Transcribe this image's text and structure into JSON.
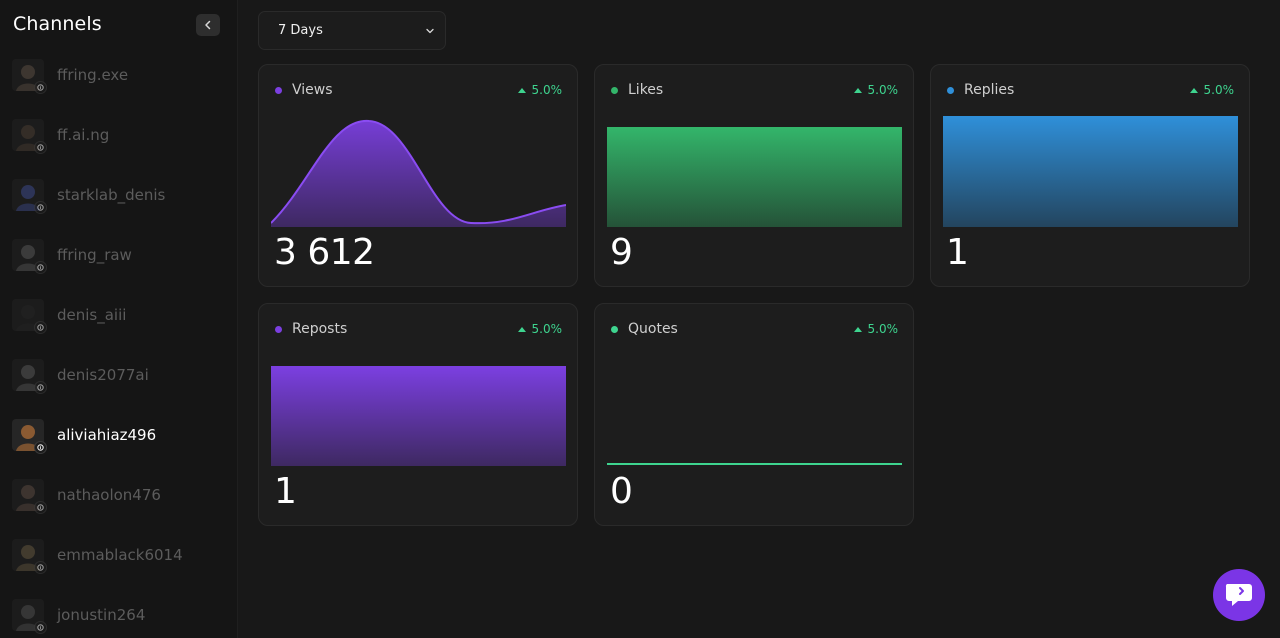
{
  "sidebar": {
    "title": "Channels",
    "channels": [
      {
        "name": "ffring.exe",
        "avatar_color": "#6e5f52"
      },
      {
        "name": "ff.ai.ng",
        "avatar_color": "#5a4a3e"
      },
      {
        "name": "starklab_denis",
        "avatar_color": "#4a5aa8"
      },
      {
        "name": "ffring_raw",
        "avatar_color": "#6b6b6b"
      },
      {
        "name": "denis_aiii",
        "avatar_color": "#2f2f2f"
      },
      {
        "name": "denis2077ai",
        "avatar_color": "#6a6a6a"
      },
      {
        "name": "aliviahiaz496",
        "avatar_color": "#8a5a32"
      },
      {
        "name": "nathaolon476",
        "avatar_color": "#6e5a50"
      },
      {
        "name": "emmablack6014",
        "avatar_color": "#7a6a4e"
      },
      {
        "name": "jonustin264",
        "avatar_color": "#5e5e5e"
      }
    ],
    "active_index": 6
  },
  "period": {
    "selected": "7 Days"
  },
  "cards": [
    {
      "label": "Views",
      "delta": "5.0%",
      "value": "3 612",
      "color": "#7b3fe0",
      "chart": "area-curve"
    },
    {
      "label": "Likes",
      "delta": "5.0%",
      "value": "9",
      "color": "#33b56a",
      "chart": "flat-area"
    },
    {
      "label": "Replies",
      "delta": "5.0%",
      "value": "1",
      "color": "#2f8fd8",
      "chart": "flat-area"
    },
    {
      "label": "Reposts",
      "delta": "5.0%",
      "value": "1",
      "color": "#7b3fe0",
      "chart": "flat-area"
    },
    {
      "label": "Quotes",
      "delta": "5.0%",
      "value": "0",
      "color": "#3ed48f",
      "chart": "zero-line"
    }
  ],
  "colors": {
    "accent": "#7b35e6",
    "positive": "#3ed48f"
  },
  "icons": {
    "collapse": "chevron-left-icon",
    "dropdown": "chevron-down-icon",
    "badge": "threads-icon",
    "fab": "chat-bubble-icon"
  }
}
